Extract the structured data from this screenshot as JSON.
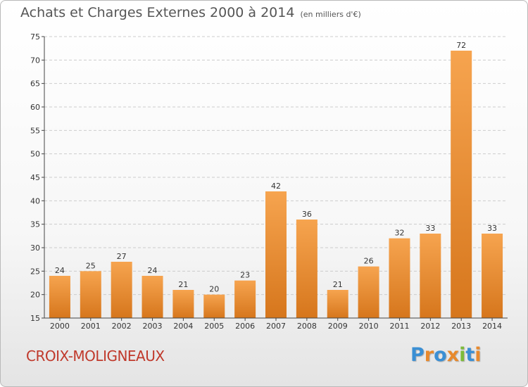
{
  "title": "Achats et Charges Externes 2000 à 2014",
  "unit": "(en milliers d'€)",
  "commune": "CROIX-MOLIGNEAUX",
  "logo": {
    "text": "Proxiti",
    "letters": [
      {
        "ch": "P",
        "color": "#3a8fd4"
      },
      {
        "ch": "r",
        "color": "#e8892c"
      },
      {
        "ch": "o",
        "color": "#3a8fd4"
      },
      {
        "ch": "x",
        "color": "#e8892c"
      },
      {
        "ch": "i",
        "color": "#7dbb3a"
      },
      {
        "ch": "t",
        "color": "#3a8fd4"
      },
      {
        "ch": "i",
        "color": "#e8892c"
      }
    ]
  },
  "chart_data": {
    "type": "bar",
    "categories": [
      "2000",
      "2001",
      "2002",
      "2003",
      "2004",
      "2005",
      "2006",
      "2007",
      "2008",
      "2009",
      "2010",
      "2011",
      "2012",
      "2013",
      "2014"
    ],
    "values": [
      24,
      25,
      27,
      24,
      21,
      20,
      23,
      42,
      36,
      21,
      26,
      32,
      33,
      72,
      33
    ],
    "ylim": [
      15,
      75
    ],
    "yticks": [
      15,
      20,
      25,
      30,
      35,
      40,
      45,
      50,
      55,
      60,
      65,
      70,
      75
    ],
    "grid": true,
    "colors": {
      "bar_light": "#f6a44f",
      "bar_dark": "#d6761c",
      "grid": "#cccccc",
      "axis": "#444444",
      "text": "#333333"
    }
  }
}
